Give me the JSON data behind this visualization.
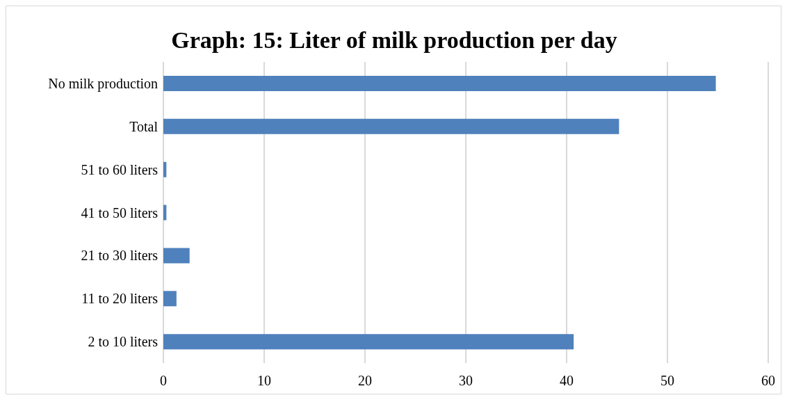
{
  "chart_data": {
    "type": "bar",
    "orientation": "horizontal",
    "title": "Graph: 15: Liter of milk production per day",
    "categories": [
      "No milk production",
      "Total",
      "51 to 60 liters",
      "41 to 50 liters",
      "21 to 30 liters",
      "11 to 20 liters",
      "2 to 10 liters"
    ],
    "values": [
      54.8,
      45.2,
      0.3,
      0.3,
      2.6,
      1.3,
      40.7
    ],
    "color": "#4f81bd",
    "xlim": [
      0,
      60
    ],
    "xticks": [
      0,
      10,
      20,
      30,
      40,
      50,
      60
    ],
    "grid": "x",
    "legend": false
  }
}
